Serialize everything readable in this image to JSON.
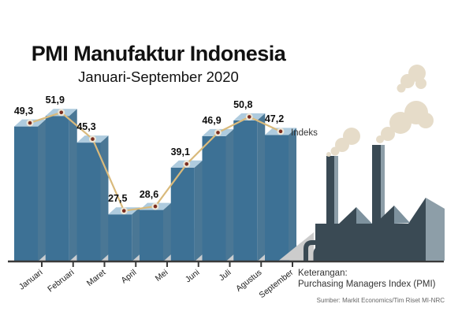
{
  "chart_data": {
    "type": "bar",
    "overlay": "line",
    "title": "PMI Manufaktur Indonesia",
    "subtitle": "Januari-September 2020",
    "categories": [
      "Januari",
      "Februari",
      "Maret",
      "April",
      "Mei",
      "Juni",
      "Juli",
      "Agustus",
      "September"
    ],
    "values": [
      49.3,
      51.9,
      45.3,
      27.5,
      28.6,
      39.1,
      46.9,
      50.8,
      47.2
    ],
    "value_labels_display": [
      "49,3",
      "51,9",
      "45,3",
      "27,5",
      "28,6",
      "39,1",
      "46,9",
      "50,8",
      "47,2"
    ],
    "series_label": "Indeks",
    "xlabel": "",
    "ylabel": "",
    "ylim": [
      16,
      55
    ],
    "grid": false,
    "legend_position": "right-of-last-point",
    "x_tick_rotation": -38
  },
  "footer": {
    "keterangan_title": "Keterangan:",
    "keterangan_body": "Purchasing Managers Index (PMI)",
    "source": "Sumber: Markit Economics/Tim Riset MI-NRC"
  },
  "colors": {
    "bar_front": "#3D7195",
    "bar_top": "#AECBDE",
    "bar_side": "#4A7795",
    "bar_shadow": "#C9CDD0",
    "trend_line": "#D9BA7C",
    "dot_inner": "#7B2D1F",
    "dot_ring": "#EDE6D6",
    "axis": "#3A3A3A",
    "factory_dark": "#3A4A54",
    "factory_light": "#7E929E",
    "factory_side": "#8D9EA8",
    "factory_shadow": "#CCCCCC",
    "smoke": "#E6DCC9",
    "text": "#111111",
    "muted_text": "#666666"
  }
}
